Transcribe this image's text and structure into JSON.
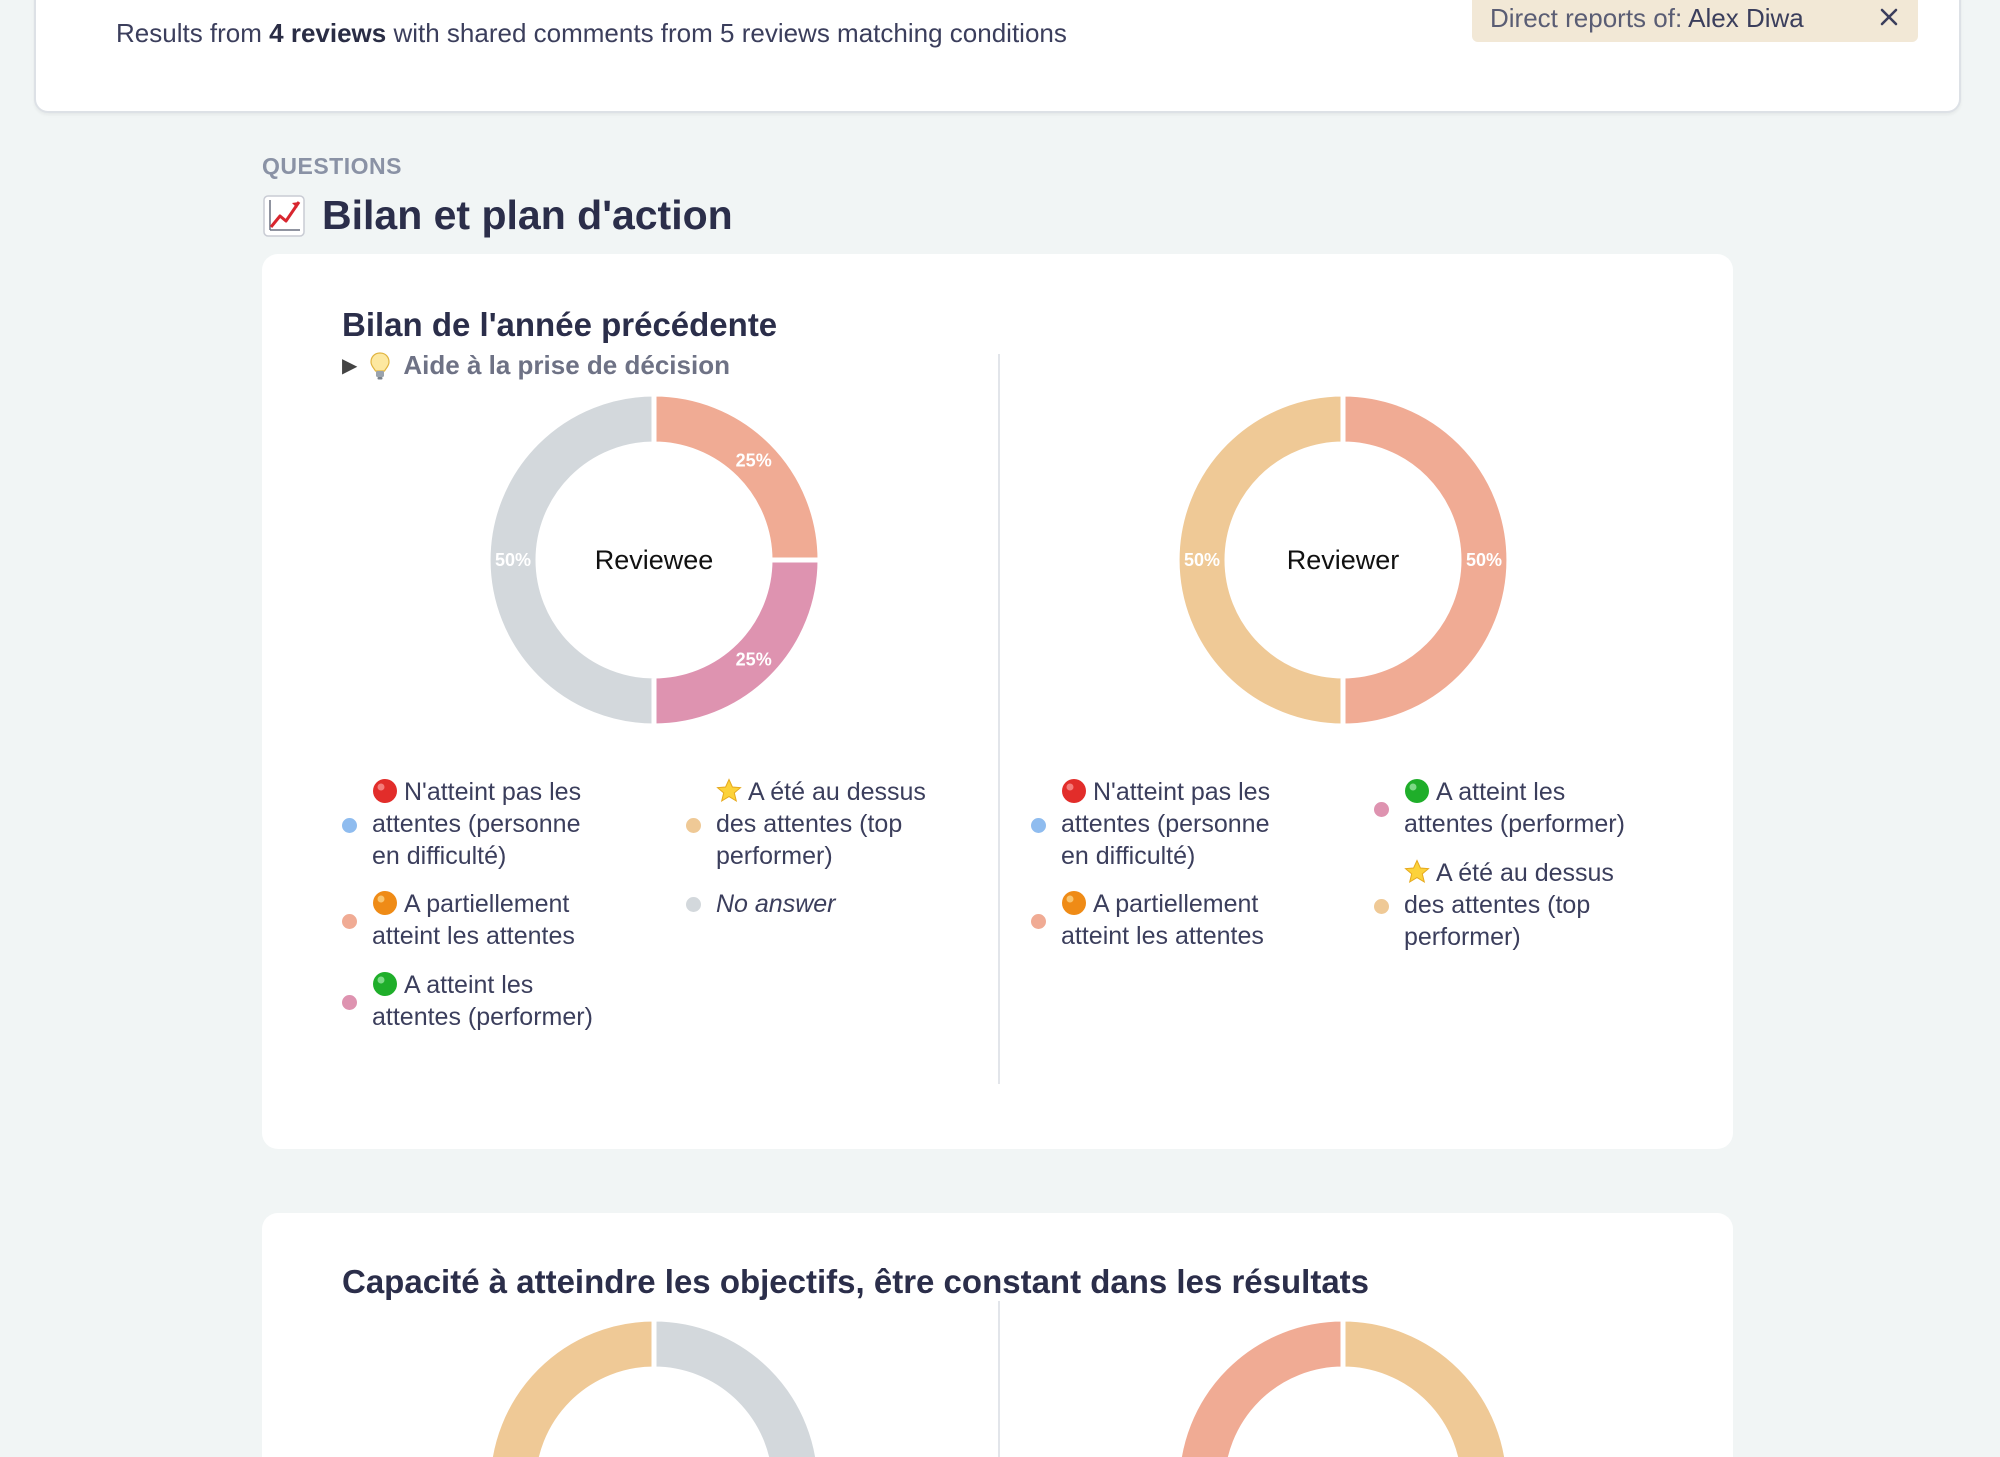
{
  "results": {
    "prefix": "Results from ",
    "count": "4 reviews",
    "suffix": " with shared comments from 5 reviews matching conditions",
    "filter_label": "Direct reports of:",
    "filter_value": "Alex Diwa"
  },
  "section": {
    "label": "QUESTIONS",
    "title": "Bilan et plan d'action",
    "title_icon": "chart-increasing-emoji"
  },
  "questions": [
    {
      "title": "Bilan de l'année précédente",
      "help": "Aide à la prise de décision"
    },
    {
      "title": "Capacité à atteindre les objectifs, être constant dans les résultats"
    }
  ],
  "colors": {
    "blue": "#8fbcef",
    "salmon": "#f0ab94",
    "pink": "#de93b0",
    "gold": "#efc996",
    "grey": "#d3d8dc"
  },
  "legend": {
    "opt1_a": "N'atteint pas les",
    "opt1_b": "attentes (personne",
    "opt1_c": "en difficulté)",
    "opt2_a": "A partiellement",
    "opt2_b": "atteint les attentes",
    "opt3_a": "A atteint les",
    "opt3_b": "attentes (performer)",
    "opt4_a": "A été au dessus",
    "opt4_b": "des attentes (top",
    "opt4_c": "performer)",
    "opt5": "No answer"
  },
  "chart_data": [
    {
      "type": "pie",
      "center_label": "Reviewee",
      "categories": [
        "N'atteint pas les attentes (personne en difficulté)",
        "A partiellement atteint les attentes",
        "A atteint les attentes (performer)",
        "A été au dessus des attentes (top performer)",
        "No answer"
      ],
      "values": [
        0,
        25,
        25,
        0,
        50
      ],
      "labels": [
        "",
        "25%",
        "25%",
        "",
        "50%"
      ]
    },
    {
      "type": "pie",
      "center_label": "Reviewer",
      "categories": [
        "N'atteint pas les attentes (personne en difficulté)",
        "A partiellement atteint les attentes",
        "A atteint les attentes (performer)",
        "A été au dessus des attentes (top performer)"
      ],
      "values": [
        0,
        50,
        0,
        50
      ],
      "labels": [
        "",
        "50%",
        "",
        "50%"
      ]
    }
  ]
}
